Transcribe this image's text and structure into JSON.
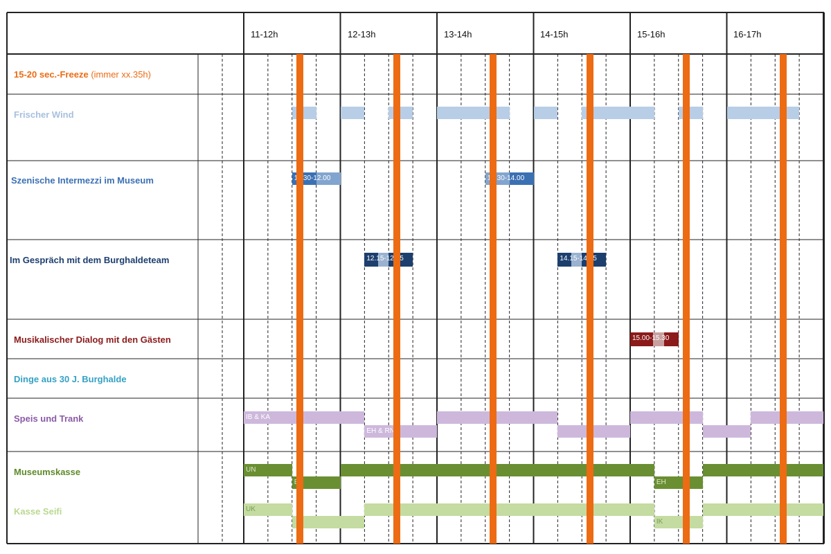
{
  "colors": {
    "freeze": "#ec6b13",
    "frischer_wind": "#b8cde6",
    "szenische": "#3b70b3",
    "gespraech": "#1d3f6e",
    "musik": "#8b1a1a",
    "dinge": "#34a1c4",
    "speis": "#cdb8dc",
    "museumskasse": "#6a8f32",
    "kasse_seifi": "#c4dca1"
  },
  "header": {
    "hours": [
      "11-12h",
      "12-13h",
      "13-14h",
      "14-15h",
      "15-16h",
      "16-17h"
    ]
  },
  "rows": [
    {
      "key": "freeze",
      "label_main": "15-20 sec.-Freeze",
      "label_note": "(immer xx.35h)"
    },
    {
      "key": "frischer_wind",
      "label": "Frischer Wind"
    },
    {
      "key": "szenische",
      "label": "Szenische Intermezzi im Museum"
    },
    {
      "key": "gespraech",
      "label": "Im Gespräch mit dem Burghaldeteam"
    },
    {
      "key": "musik",
      "label": "Musikalischer Dialog mit den Gästen"
    },
    {
      "key": "dinge",
      "label": "Dinge aus 30 J. Burghalde"
    },
    {
      "key": "speis",
      "label": "Speis und Trank"
    },
    {
      "key": "museumskasse",
      "label": "Museumskasse"
    },
    {
      "key": "kasse_seifi",
      "label": "Kasse Seifi"
    }
  ],
  "blocks": {
    "frischer_wind": [
      {
        "start": 11.5,
        "end": 11.75
      },
      {
        "start": 12.0,
        "end": 12.25
      },
      {
        "start": 12.5,
        "end": 12.75
      },
      {
        "start": 13.0,
        "end": 13.75
      },
      {
        "start": 14.0,
        "end": 14.25
      },
      {
        "start": 14.5,
        "end": 15.25
      },
      {
        "start": 15.5,
        "end": 15.75
      },
      {
        "start": 16.0,
        "end": 16.75
      }
    ],
    "szenische": [
      {
        "start": 11.5,
        "end": 12.0,
        "text": "11.30-12.00",
        "segments": [
          "dark",
          "light"
        ]
      },
      {
        "start": 13.5,
        "end": 14.0,
        "text": "13.30-14.00",
        "segments": [
          "light",
          "dark"
        ]
      }
    ],
    "gespraech": [
      {
        "start": 12.25,
        "end": 12.75,
        "text": "12.15-12.45"
      },
      {
        "start": 14.25,
        "end": 14.75,
        "text": "14.15-14.45"
      }
    ],
    "musik": [
      {
        "start": 15.0,
        "end": 15.5,
        "text": "15.00-15.30"
      }
    ],
    "speis_top": [
      {
        "start": 11.0,
        "end": 12.25,
        "text": "IB & KA"
      },
      {
        "start": 13.0,
        "end": 14.25
      },
      {
        "start": 15.0,
        "end": 15.75
      },
      {
        "start": 16.25,
        "end": 17.0
      }
    ],
    "speis_bottom": [
      {
        "start": 12.25,
        "end": 13.0,
        "text": "EH & RN"
      },
      {
        "start": 14.25,
        "end": 15.0
      },
      {
        "start": 15.75,
        "end": 16.25
      }
    ],
    "kasse_top": [
      {
        "start": 11.0,
        "end": 11.5,
        "text": "UN"
      },
      {
        "start": 12.0,
        "end": 15.25
      },
      {
        "start": 15.75,
        "end": 17.0
      }
    ],
    "kasse_bottom": [
      {
        "start": 11.5,
        "end": 12.0,
        "text": "EH"
      },
      {
        "start": 15.25,
        "end": 15.75,
        "text": "EH"
      }
    ],
    "seifi_top": [
      {
        "start": 11.0,
        "end": 11.5,
        "text": "UK"
      },
      {
        "start": 12.25,
        "end": 15.25
      },
      {
        "start": 15.75,
        "end": 17.0
      }
    ],
    "seifi_bottom": [
      {
        "start": 11.5,
        "end": 12.25
      },
      {
        "start": 15.25,
        "end": 15.75,
        "text": "IK"
      }
    ]
  },
  "freeze_minute": 35
}
